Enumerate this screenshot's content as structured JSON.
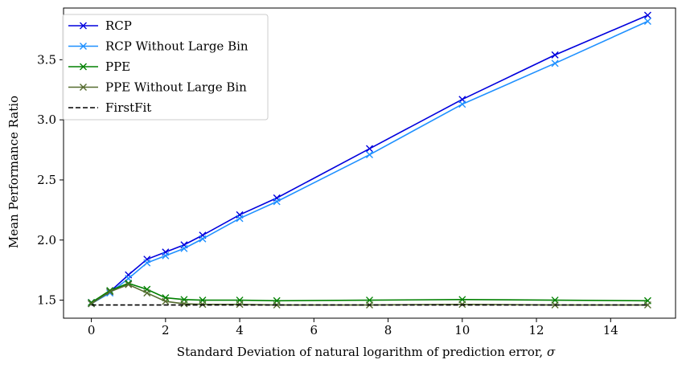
{
  "chart_data": {
    "type": "line",
    "xlabel": "Standard Deviation of natural logarithm of prediction error, ",
    "xlabel_symbol": "σ",
    "ylabel": "Mean Performance Ratio",
    "xlim": [
      -0.75,
      15.75
    ],
    "ylim": [
      1.35,
      3.93
    ],
    "xticks": [
      0,
      2,
      4,
      6,
      8,
      10,
      12,
      14
    ],
    "yticks": [
      1.5,
      2.0,
      2.5,
      3.0,
      3.5
    ],
    "xtick_labels": [
      "0",
      "2",
      "4",
      "6",
      "8",
      "10",
      "12",
      "14"
    ],
    "ytick_labels": [
      "1.5",
      "2.0",
      "2.5",
      "3.0",
      "3.5"
    ],
    "grid": false,
    "legend_position": "top-left",
    "x": [
      0,
      0.5,
      1,
      1.5,
      2,
      2.5,
      3,
      4,
      5,
      7.5,
      10,
      12.5,
      15
    ],
    "series": [
      {
        "name": "RCP",
        "color": "#0000dd",
        "marker": "x",
        "linestyle": "solid",
        "values": [
          1.48,
          1.57,
          1.71,
          1.84,
          1.9,
          1.96,
          2.04,
          2.21,
          2.35,
          2.76,
          3.17,
          3.54,
          3.87
        ]
      },
      {
        "name": "RCP Without Large Bin",
        "color": "#1e90ff",
        "marker": "x",
        "linestyle": "solid",
        "values": [
          1.47,
          1.56,
          1.68,
          1.81,
          1.87,
          1.93,
          2.01,
          2.18,
          2.32,
          2.71,
          3.13,
          3.47,
          3.82
        ]
      },
      {
        "name": "PPE",
        "color": "#008000",
        "marker": "x",
        "linestyle": "solid",
        "values": [
          1.48,
          1.58,
          1.64,
          1.59,
          1.52,
          1.505,
          1.5,
          1.5,
          1.495,
          1.5,
          1.505,
          1.5,
          1.495
        ]
      },
      {
        "name": "PPE Without Large Bin",
        "color": "#556b2f",
        "marker": "x",
        "linestyle": "solid",
        "values": [
          1.47,
          1.57,
          1.63,
          1.56,
          1.49,
          1.47,
          1.465,
          1.465,
          1.46,
          1.46,
          1.465,
          1.46,
          1.46
        ]
      },
      {
        "name": "FirstFit",
        "color": "#000000",
        "marker": "none",
        "linestyle": "dashed",
        "values": [
          1.46,
          1.46,
          1.46,
          1.46,
          1.46,
          1.46,
          1.46,
          1.46,
          1.46,
          1.46,
          1.46,
          1.46,
          1.46
        ]
      }
    ]
  }
}
